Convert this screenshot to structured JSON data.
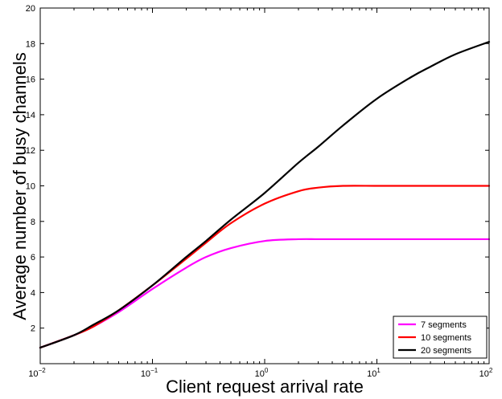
{
  "chart_data": {
    "type": "line",
    "xscale": "log",
    "xlabel": "Client request arrival rate",
    "ylabel": "Average number of busy channels",
    "xlim": [
      0.01,
      100
    ],
    "ylim": [
      0,
      20
    ],
    "x_ticks": [
      {
        "value": 0.01,
        "base": "10",
        "exp": "−2"
      },
      {
        "value": 0.1,
        "base": "10",
        "exp": "−1"
      },
      {
        "value": 1,
        "base": "10",
        "exp": "0"
      },
      {
        "value": 10,
        "base": "10",
        "exp": "1"
      },
      {
        "value": 100,
        "base": "10",
        "exp": "2"
      }
    ],
    "y_ticks": [
      2,
      4,
      6,
      8,
      10,
      12,
      14,
      16,
      18,
      20
    ],
    "legend_position": "bottom-right",
    "x": [
      0.01,
      0.02,
      0.03,
      0.05,
      0.1,
      0.2,
      0.3,
      0.5,
      1,
      2,
      3,
      5,
      10,
      20,
      30,
      50,
      100
    ],
    "series": [
      {
        "name": "7 segments",
        "color": "#ff00ff",
        "values": [
          0.9,
          1.6,
          2.1,
          2.9,
          4.2,
          5.4,
          6.0,
          6.5,
          6.9,
          7.0,
          7.0,
          7.0,
          7.0,
          7.0,
          7.0,
          7.0,
          7.0
        ]
      },
      {
        "name": "10 segments",
        "color": "#ff0000",
        "values": [
          0.9,
          1.6,
          2.1,
          3.0,
          4.4,
          5.9,
          6.8,
          7.9,
          9.0,
          9.7,
          9.9,
          10.0,
          10.0,
          10.0,
          10.0,
          10.0,
          10.0
        ]
      },
      {
        "name": "20 segments",
        "color": "#000000",
        "values": [
          0.9,
          1.6,
          2.2,
          3.0,
          4.4,
          6.0,
          6.9,
          8.1,
          9.6,
          11.3,
          12.2,
          13.4,
          14.9,
          16.1,
          16.7,
          17.4,
          18.1
        ]
      }
    ]
  }
}
